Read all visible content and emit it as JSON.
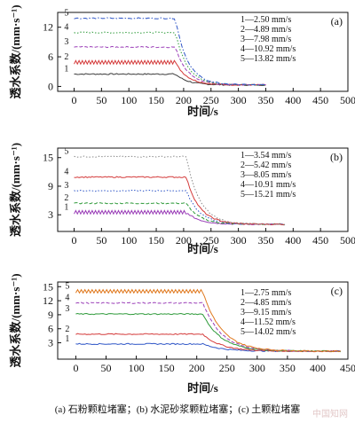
{
  "figure": {
    "caption": "(a) 石粉颗粒堵塞；(b) 水泥砂浆颗粒堵塞；(c) 土颗粒堵塞",
    "watermark": "中国知网",
    "xlabel": "时间/s",
    "ylabel": "透水系数/(mm·s⁻¹)"
  },
  "colors": {
    "1": "#3a3a3a",
    "2": "#d43a3a",
    "3": "#9b3fb8",
    "4": "#2e9a3a",
    "5": "#2f56c7",
    "axis": "#111111"
  },
  "chart_data": [
    {
      "panel": "(a)",
      "type": "line",
      "xlabel": "时间/s",
      "ylabel": "透水系数/(mm·s⁻¹)",
      "xlim": [
        -30,
        500
      ],
      "ylim": [
        -1,
        15
      ],
      "xticks": [
        0,
        50,
        100,
        150,
        200,
        250,
        300,
        350,
        400,
        450,
        500
      ],
      "yticks": [
        0,
        6,
        12
      ],
      "drop_start": 185,
      "drop_end": 350,
      "series": [
        {
          "name": "1—2.50 mm/s",
          "id": "1",
          "initial": 2.5,
          "final": 0.3,
          "color": "#3a3a3a",
          "style": "solid"
        },
        {
          "name": "2—4.89 mm/s",
          "id": "2",
          "initial": 4.89,
          "final": 0.3,
          "color": "#d43a3a",
          "style": "zigzag"
        },
        {
          "name": "3—7.98 mm/s",
          "id": "3",
          "initial": 7.98,
          "final": 0.3,
          "color": "#9b3fb8",
          "style": "dashed"
        },
        {
          "name": "4—10.92 mm/s",
          "id": "4",
          "initial": 10.92,
          "final": 0.3,
          "color": "#2e9a3a",
          "style": "dotted"
        },
        {
          "name": "5—13.82 mm/s",
          "id": "5",
          "initial": 13.82,
          "final": 0.3,
          "color": "#2f56c7",
          "style": "dashdot"
        }
      ]
    },
    {
      "panel": "(b)",
      "type": "line",
      "xlabel": "时间/s",
      "ylabel": "透水系数/(mm·s⁻¹)",
      "xlim": [
        -30,
        500
      ],
      "ylim": [
        -0.5,
        17
      ],
      "xticks": [
        0,
        50,
        100,
        150,
        200,
        250,
        300,
        350,
        400,
        450,
        500
      ],
      "yticks": [
        3,
        9,
        15
      ],
      "drop_start": 205,
      "drop_end": 385,
      "series": [
        {
          "name": "1—3.54 mm/s",
          "id": "1",
          "initial": 3.54,
          "final": 1.0,
          "color": "#9b3fb8",
          "style": "zigzag"
        },
        {
          "name": "2—5.42 mm/s",
          "id": "2",
          "initial": 5.42,
          "final": 1.0,
          "color": "#2e9a3a",
          "style": "dashed"
        },
        {
          "name": "3—8.05 mm/s",
          "id": "3",
          "initial": 8.05,
          "final": 1.0,
          "color": "#2f56c7",
          "style": "dotted"
        },
        {
          "name": "4—10.91 mm/s",
          "id": "4",
          "initial": 10.91,
          "final": 1.0,
          "color": "#d43a3a",
          "style": "solid"
        },
        {
          "name": "5—15.21 mm/s",
          "id": "5",
          "initial": 15.21,
          "final": 1.0,
          "color": "#8a8a8a",
          "style": "dotted"
        }
      ]
    },
    {
      "panel": "(c)",
      "type": "line",
      "xlabel": "时间/s",
      "ylabel": "透水系数/(mm·s⁻¹)",
      "xlim": [
        -30,
        450
      ],
      "ylim": [
        -0.5,
        16
      ],
      "xticks": [
        0,
        50,
        100,
        150,
        200,
        250,
        300,
        350,
        400,
        450
      ],
      "yticks": [
        3,
        6,
        9,
        12,
        15
      ],
      "drop_start": 210,
      "drop_end": 440,
      "series": [
        {
          "name": "1—2.75 mm/s",
          "id": "1",
          "initial": 2.75,
          "final": 1.2,
          "color": "#2f56c7",
          "style": "solid"
        },
        {
          "name": "2—4.85 mm/s",
          "id": "2",
          "initial": 4.85,
          "final": 1.2,
          "color": "#d43a3a",
          "style": "solid"
        },
        {
          "name": "3—9.15 mm/s",
          "id": "3",
          "initial": 9.15,
          "final": 1.2,
          "color": "#2e9a3a",
          "style": "solid"
        },
        {
          "name": "4—11.52 mm/s",
          "id": "4",
          "initial": 11.52,
          "final": 1.2,
          "color": "#9b3fb8",
          "style": "dashed"
        },
        {
          "name": "5—14.02 mm/s",
          "id": "5",
          "initial": 14.02,
          "final": 1.2,
          "color": "#e07a20",
          "style": "zigzag"
        }
      ]
    }
  ]
}
